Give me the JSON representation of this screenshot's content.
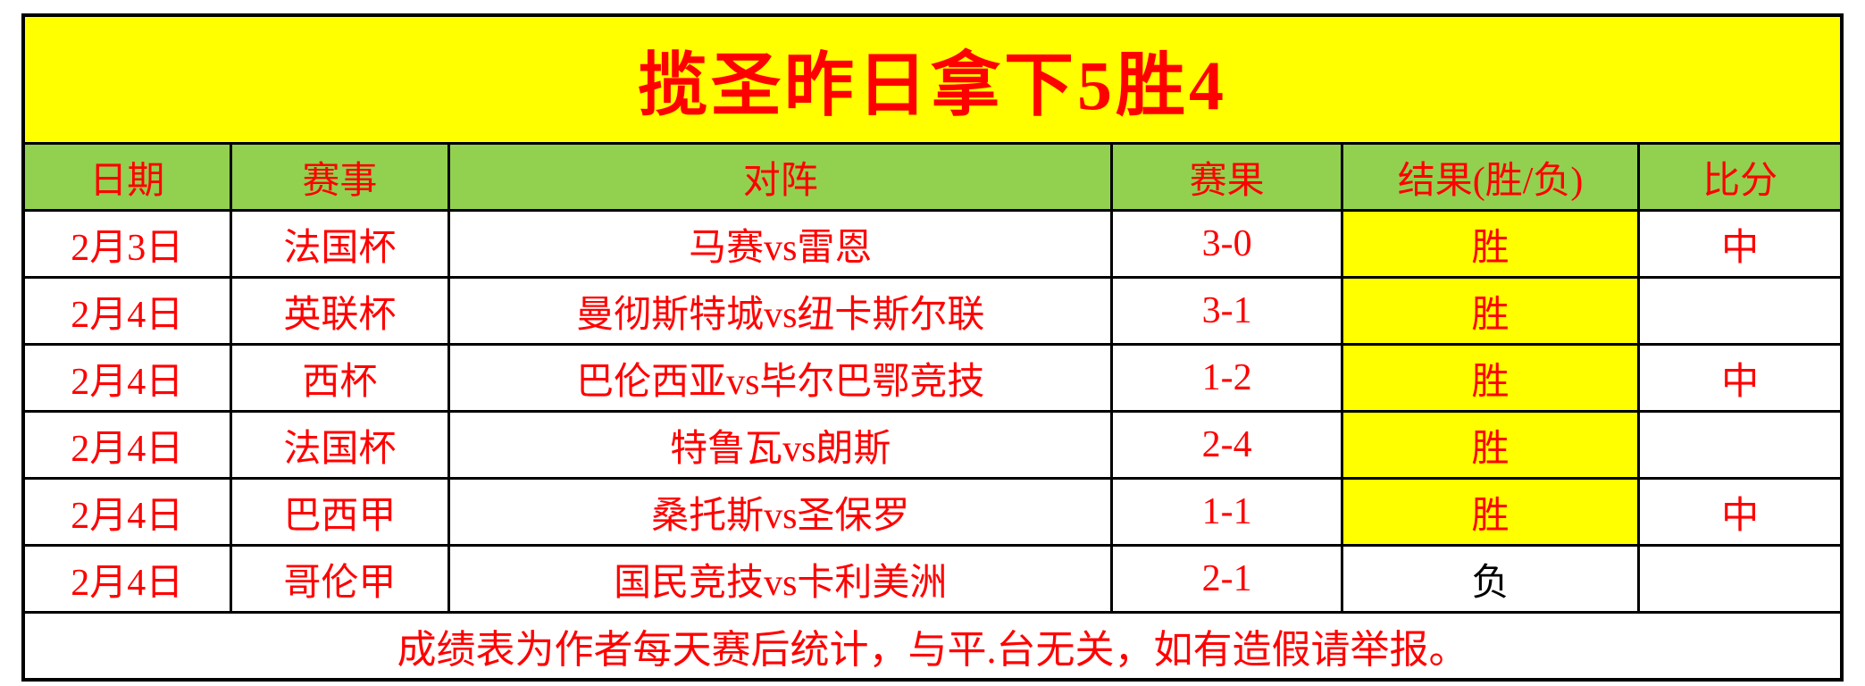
{
  "title": "揽圣昨日拿下5胜4",
  "colors": {
    "title_bg": "#ffff00",
    "header_bg": "#92d050",
    "win_highlight_bg": "#ffff00",
    "accent_red": "#ff0000",
    "loss_text": "#000000",
    "border": "#000000"
  },
  "table": {
    "columns": [
      "日期",
      "赛事",
      "对阵",
      "赛果",
      "结果(胜/负)",
      "比分"
    ],
    "rows": [
      {
        "date": "2月3日",
        "league": "法国杯",
        "match": "马赛vs雷恩",
        "score": "3-0",
        "result": "胜",
        "result_win": true,
        "hit": "中"
      },
      {
        "date": "2月4日",
        "league": "英联杯",
        "match": "曼彻斯特城vs纽卡斯尔联",
        "score": "3-1",
        "result": "胜",
        "result_win": true,
        "hit": ""
      },
      {
        "date": "2月4日",
        "league": "西杯",
        "match": "巴伦西亚vs毕尔巴鄂竞技",
        "score": "1-2",
        "result": "胜",
        "result_win": true,
        "hit": "中"
      },
      {
        "date": "2月4日",
        "league": "法国杯",
        "match": "特鲁瓦vs朗斯",
        "score": "2-4",
        "result": "胜",
        "result_win": true,
        "hit": ""
      },
      {
        "date": "2月4日",
        "league": "巴西甲",
        "match": "桑托斯vs圣保罗",
        "score": "1-1",
        "result": "胜",
        "result_win": true,
        "hit": "中"
      },
      {
        "date": "2月4日",
        "league": "哥伦甲",
        "match": "国民竞技vs卡利美洲",
        "score": "2-1",
        "result": "负",
        "result_win": false,
        "hit": ""
      }
    ],
    "footer": "成绩表为作者每天赛后统计，与平.台无关，如有造假请举报。"
  }
}
